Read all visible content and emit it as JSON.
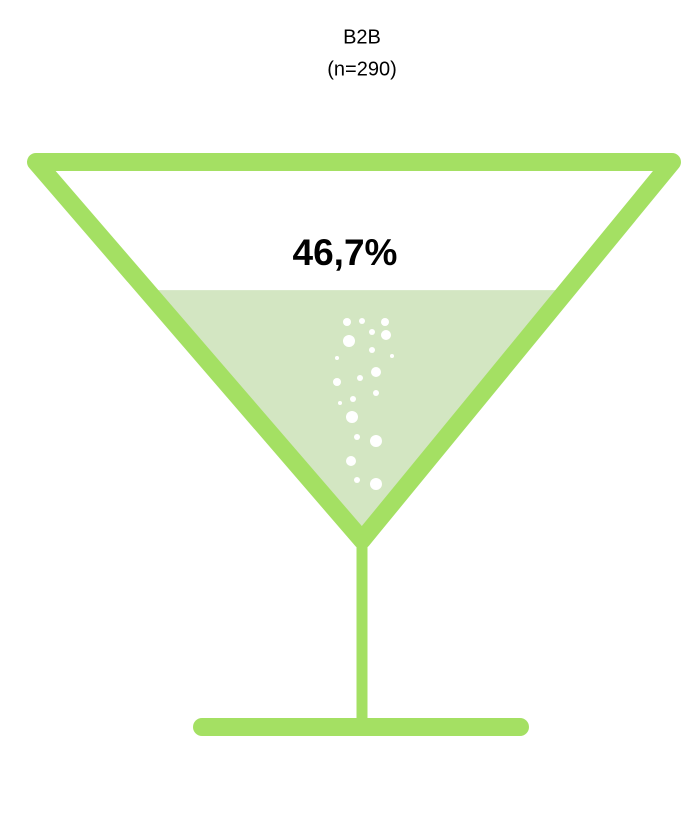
{
  "chart_data": {
    "type": "glass",
    "title": "B2B",
    "subtitle": "(n=290)",
    "values": [
      46.7
    ],
    "value_labels": [
      "46,7%"
    ],
    "color": "#a4e063",
    "fill_color": "#d3e6c2",
    "ylim": [
      0,
      100
    ]
  }
}
